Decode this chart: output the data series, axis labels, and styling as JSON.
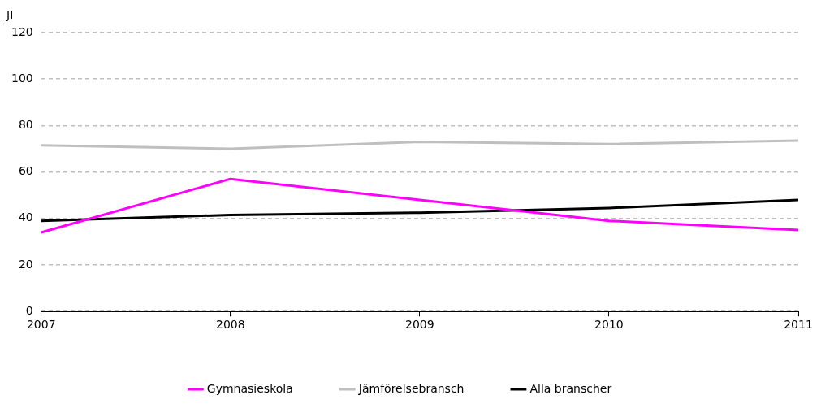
{
  "chart_data": {
    "type": "line",
    "ylabel": "JI",
    "categories": [
      "2007",
      "2008",
      "2009",
      "2010",
      "2011"
    ],
    "series": [
      {
        "name": "Gymnasieskola",
        "color": "#ff00ff",
        "values": [
          34,
          57,
          48,
          39,
          35
        ]
      },
      {
        "name": "Jämförelsebransch",
        "color": "#bfbfbf",
        "values": [
          71.5,
          70,
          73,
          72,
          73.5
        ]
      },
      {
        "name": "Alla branscher",
        "color": "#000000",
        "values": [
          39,
          41.5,
          42.5,
          44.5,
          48
        ]
      }
    ],
    "ylim": [
      0,
      120
    ],
    "yticks": [
      0,
      20,
      40,
      60,
      80,
      100,
      120
    ],
    "grid": "y",
    "legend": "bottom",
    "marker": "none",
    "line_style": "solid"
  }
}
